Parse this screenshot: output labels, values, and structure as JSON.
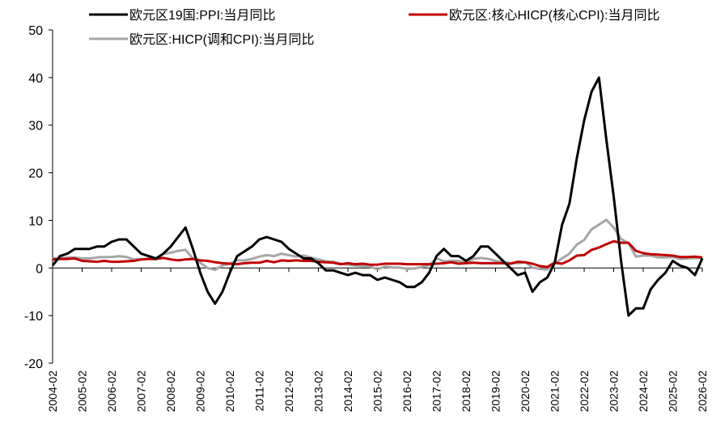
{
  "chart_data": {
    "type": "line",
    "categories": [
      "2004-02",
      null,
      null,
      null,
      "2005-02",
      null,
      null,
      null,
      "2006-02",
      null,
      null,
      null,
      "2007-02",
      null,
      null,
      null,
      "2008-02",
      null,
      null,
      null,
      "2009-02",
      null,
      null,
      null,
      "2010-02",
      null,
      null,
      null,
      "2011-02",
      null,
      null,
      null,
      "2012-02",
      null,
      null,
      null,
      "2013-02",
      null,
      null,
      null,
      "2014-02",
      null,
      null,
      null,
      "2015-02",
      null,
      null,
      null,
      "2016-02",
      null,
      null,
      null,
      "2017-02",
      null,
      null,
      null,
      "2018-02",
      null,
      null,
      null,
      "2019-02",
      null,
      null,
      null,
      "2020-02",
      null,
      null,
      null,
      "2021-02",
      null,
      null,
      null,
      "2022-02",
      null,
      null,
      null,
      "2023-02",
      null,
      null,
      null,
      "2024-02",
      null,
      null,
      null,
      "2025-02",
      null,
      null,
      null,
      "2026-02"
    ],
    "series": [
      {
        "name": "欧元区19国:PPI:当月同比",
        "color": "#000000",
        "values": [
          0.5,
          2.5,
          3,
          4,
          4,
          4,
          4.5,
          4.5,
          5.5,
          6,
          6,
          4.5,
          3,
          2.5,
          2,
          3,
          4.5,
          6.5,
          8.5,
          4,
          -1,
          -5,
          -7.5,
          -5,
          -1,
          2.5,
          3.5,
          4.5,
          6,
          6.5,
          6,
          5.5,
          4,
          3,
          2,
          2,
          1,
          -0.5,
          -0.5,
          -1,
          -1.5,
          -1,
          -1.5,
          -1.5,
          -2.5,
          -2,
          -2.5,
          -3,
          -4,
          -4,
          -3,
          -1,
          2.5,
          4,
          2.5,
          2.5,
          1.5,
          2.5,
          4.5,
          4.5,
          3,
          1.5,
          0,
          -1.5,
          -1,
          -5,
          -3,
          -2,
          1,
          9,
          13.5,
          23,
          31,
          37,
          40,
          27,
          15,
          1.5,
          -10,
          -8.5,
          -8.5,
          -4.5,
          -2.5,
          -1,
          1.5,
          0.5,
          0,
          -1.5,
          2
        ]
      },
      {
        "name": "欧元区:核心HICP(核心CPI):当月同比",
        "color": "#c00000",
        "values": [
          1.8,
          1.9,
          1.9,
          2,
          1.5,
          1.4,
          1.3,
          1.5,
          1.3,
          1.3,
          1.4,
          1.5,
          1.8,
          1.9,
          1.9,
          2.1,
          1.8,
          1.6,
          1.8,
          1.9,
          1.6,
          1.5,
          1.2,
          1,
          0.9,
          0.8,
          1,
          1.1,
          1.1,
          1.5,
          1.2,
          1.6,
          1.5,
          1.6,
          1.5,
          1.5,
          1.3,
          1.2,
          1.1,
          0.8,
          1,
          0.8,
          0.9,
          0.7,
          0.7,
          0.9,
          0.9,
          0.9,
          0.8,
          0.8,
          0.8,
          0.8,
          0.9,
          1,
          1.2,
          0.9,
          1,
          1.1,
          1,
          1,
          1,
          1,
          0.9,
          1.3,
          1.2,
          0.9,
          0.4,
          0.2,
          1.1,
          0.9,
          1.6,
          2.6,
          2.7,
          3.8,
          4.3,
          5,
          5.6,
          5.3,
          5.3,
          3.6,
          3.1,
          2.9,
          2.8,
          2.7,
          2.6,
          2.3,
          2.3,
          2.4,
          2.2
        ]
      },
      {
        "name": "欧元区:HICP(调和CPI):当月同比",
        "color": "#a6a6a6",
        "values": [
          2,
          2,
          2.2,
          2.2,
          2,
          2,
          2.2,
          2.3,
          2.3,
          2.5,
          2.3,
          1.8,
          1.8,
          1.9,
          1.8,
          3,
          3.2,
          3.6,
          3.8,
          2,
          1.1,
          0,
          -0.4,
          0.5,
          0.9,
          1.6,
          1.6,
          1.9,
          2.4,
          2.7,
          2.5,
          3,
          2.7,
          2.4,
          2.6,
          2.2,
          1.8,
          1.4,
          1.3,
          0.9,
          0.7,
          0.5,
          0.4,
          0.3,
          -0.3,
          0.3,
          0.1,
          0.1,
          -0.2,
          -0.1,
          0.2,
          0.6,
          2,
          1.4,
          1.5,
          1.5,
          1.1,
          1.9,
          2.1,
          1.9,
          1.5,
          1.2,
          1,
          1,
          1.2,
          0.1,
          -0.2,
          -0.3,
          0.9,
          2,
          3,
          4.9,
          5.9,
          8.1,
          9.1,
          10.1,
          8.5,
          6.1,
          5.2,
          2.4,
          2.6,
          2.6,
          2.2,
          2.2,
          2.3,
          1.9,
          2,
          2.1,
          2
        ]
      }
    ],
    "ylim": [
      -20,
      50
    ],
    "yticks": [
      -20,
      -10,
      0,
      10,
      20,
      30,
      40,
      50
    ],
    "grid": false
  }
}
